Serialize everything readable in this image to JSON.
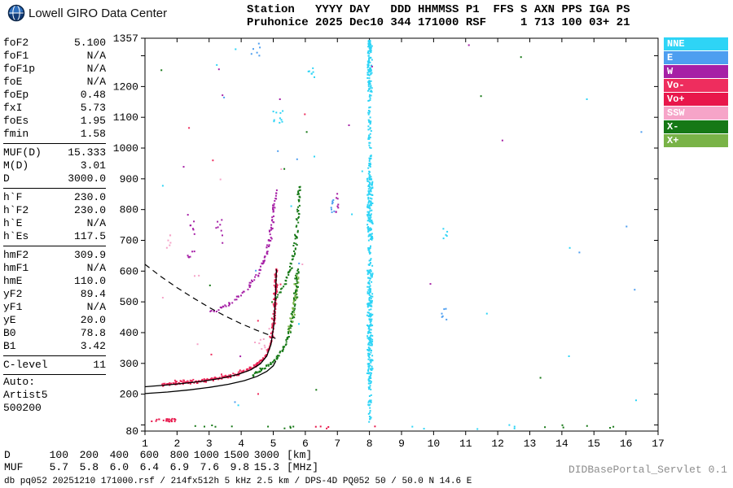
{
  "header": {
    "title": "Lowell GIRO Data Center",
    "station_line1": "Station   YYYY DAY   DDD HHMMSS P1  FFS S AXN PPS IGA PS",
    "station_line2": "Pruhonice 2025 Dec10 344 171000 RSF     1 713 100 03+ 21"
  },
  "params": {
    "sections": [
      {
        "rows": [
          [
            "foF2",
            "5.100"
          ],
          [
            "foF1",
            "N/A"
          ],
          [
            "foF1p",
            "N/A"
          ],
          [
            "foE",
            "N/A"
          ],
          [
            "foEp",
            "0.48"
          ],
          [
            "fxI",
            "5.73"
          ],
          [
            "foEs",
            "1.95"
          ],
          [
            "fmin",
            "1.58"
          ]
        ]
      },
      {
        "divider_top": true,
        "rows": [
          [
            "MUF(D)",
            "15.333"
          ],
          [
            "M(D)",
            "3.01"
          ],
          [
            "D",
            "3000.0"
          ]
        ]
      },
      {
        "divider_top": true,
        "rows": [
          [
            "h`F",
            "230.0"
          ],
          [
            "h`F2",
            "230.0"
          ],
          [
            "h`E",
            "N/A"
          ],
          [
            "h`Es",
            "117.5"
          ]
        ]
      },
      {
        "divider_top": true,
        "rows": [
          [
            "hmF2",
            "309.9"
          ],
          [
            "hmF1",
            "N/A"
          ],
          [
            "hmE",
            "110.0"
          ],
          [
            "yF2",
            "89.4"
          ],
          [
            "yF1",
            "N/A"
          ],
          [
            "yE",
            "20.0"
          ],
          [
            "B0",
            "78.8"
          ],
          [
            "B1",
            "3.42"
          ]
        ]
      },
      {
        "divider_top": true,
        "divider_bottom": true,
        "rows": [
          [
            "C-level",
            "11"
          ]
        ]
      },
      {
        "rows": [
          [
            "Auto:",
            ""
          ],
          [
            "Artist5",
            ""
          ],
          [
            "500200",
            ""
          ]
        ]
      }
    ]
  },
  "legend": {
    "items": [
      {
        "label": "NNE",
        "color": "#2ed4f6"
      },
      {
        "label": "E",
        "color": "#4d9ef0"
      },
      {
        "label": "W",
        "color": "#a620a6"
      },
      {
        "label": "Vo-",
        "color": "#ee2d5e"
      },
      {
        "label": "Vo+",
        "color": "#e8174b"
      },
      {
        "label": "SSW",
        "color": "#f6a4c8"
      },
      {
        "label": "X-",
        "color": "#167816"
      },
      {
        "label": "X+",
        "color": "#79b347"
      }
    ]
  },
  "chart_data": {
    "type": "scatter",
    "title": "Pruhonice 2025 Dec10 344 171000 RSF ionogram",
    "xlabel": "[MHz]",
    "ylabel": "[km]",
    "xlim": [
      1,
      17
    ],
    "ylim": [
      80,
      1357
    ],
    "grid": false,
    "legend_position": "right",
    "frame": {
      "x0": 43,
      "y0": 7,
      "x1": 673,
      "y1": 490
    },
    "x_ticks": [
      1,
      2,
      3,
      4,
      5,
      6,
      7,
      8,
      9,
      10,
      11,
      12,
      13,
      14,
      15,
      16,
      17
    ],
    "y_ticks": [
      {
        "v": 80,
        "label": "80"
      },
      {
        "v": 100
      },
      {
        "v": 200,
        "label": "200"
      },
      {
        "v": 300,
        "label": "300"
      },
      {
        "v": 400,
        "label": "400"
      },
      {
        "v": 500,
        "label": "500"
      },
      {
        "v": 600,
        "label": "600"
      },
      {
        "v": 700,
        "label": "700"
      },
      {
        "v": 800,
        "label": "800"
      },
      {
        "v": 900,
        "label": "900"
      },
      {
        "v": 1000,
        "label": "1000"
      },
      {
        "v": 1100,
        "label": "1100"
      },
      {
        "v": 1200,
        "label": "1200"
      },
      {
        "v": 1300
      },
      {
        "v": 1357,
        "label": "1357"
      }
    ],
    "traces": [
      {
        "name": "F-layer-O-trace",
        "color": "Vo+",
        "size": 2,
        "step": 2,
        "jitter": 1.3,
        "points": [
          [
            1.58,
            231
          ],
          [
            1.9,
            233
          ],
          [
            2.3,
            236
          ],
          [
            2.7,
            240
          ],
          [
            3.1,
            246
          ],
          [
            3.5,
            254
          ],
          [
            3.9,
            265
          ],
          [
            4.2,
            278
          ],
          [
            4.5,
            296
          ],
          [
            4.7,
            317
          ],
          [
            4.85,
            346
          ],
          [
            4.95,
            386
          ],
          [
            5.02,
            442
          ],
          [
            5.06,
            505
          ],
          [
            5.09,
            568
          ],
          [
            5.1,
            606
          ]
        ]
      },
      {
        "name": "F-layer-O-minus",
        "color": "Vo-",
        "size": 2,
        "step": 3,
        "jitter": 1.7,
        "points": [
          [
            1.58,
            236
          ],
          [
            2.1,
            239
          ],
          [
            2.6,
            243
          ],
          [
            3.1,
            250
          ],
          [
            3.6,
            259
          ],
          [
            4.0,
            271
          ],
          [
            4.3,
            285
          ],
          [
            4.55,
            302
          ]
        ]
      },
      {
        "name": "F-layer-O-asymptote",
        "color": "Vo-",
        "size": 2,
        "step": 3,
        "jitter": 1.8,
        "points": [
          [
            4.97,
            420
          ],
          [
            5.03,
            480
          ],
          [
            5.07,
            545
          ],
          [
            5.1,
            602
          ]
        ]
      },
      {
        "name": "F-layer-X-trace",
        "color": "X-",
        "size": 2,
        "step": 2,
        "jitter": 1.4,
        "points": [
          [
            4.35,
            262
          ],
          [
            4.65,
            279
          ],
          [
            4.95,
            300
          ],
          [
            5.15,
            324
          ],
          [
            5.32,
            352
          ],
          [
            5.45,
            384
          ],
          [
            5.55,
            422
          ],
          [
            5.63,
            466
          ],
          [
            5.7,
            522
          ],
          [
            5.75,
            572
          ],
          [
            5.77,
            604
          ]
        ]
      },
      {
        "name": "F-layer-X-plus",
        "color": "X+",
        "size": 2,
        "step": 4,
        "jitter": 2.2,
        "points": [
          [
            5.5,
            400
          ],
          [
            5.62,
            462
          ],
          [
            5.7,
            522
          ],
          [
            5.76,
            584
          ]
        ]
      },
      {
        "name": "second-hop-O-trace",
        "color": "W",
        "size": 2,
        "step": 3,
        "jitter": 1.6,
        "points": [
          [
            3.05,
            465
          ],
          [
            3.35,
            478
          ],
          [
            3.65,
            495
          ],
          [
            3.95,
            518
          ],
          [
            4.25,
            548
          ],
          [
            4.5,
            585
          ],
          [
            4.7,
            628
          ],
          [
            4.85,
            680
          ],
          [
            4.95,
            740
          ],
          [
            5.03,
            805
          ],
          [
            5.08,
            862
          ]
        ]
      },
      {
        "name": "second-hop-X-trace",
        "color": "X-",
        "size": 2,
        "step": 3,
        "jitter": 1.6,
        "points": [
          [
            5.0,
            502
          ],
          [
            5.2,
            528
          ],
          [
            5.38,
            560
          ],
          [
            5.52,
            600
          ],
          [
            5.63,
            650
          ],
          [
            5.71,
            710
          ],
          [
            5.77,
            775
          ],
          [
            5.81,
            840
          ],
          [
            5.83,
            878
          ]
        ]
      }
    ],
    "curves": {
      "solid": [
        [
          [
            1.0,
            224
          ],
          [
            1.6,
            229
          ],
          [
            2.2,
            235
          ],
          [
            2.8,
            242
          ],
          [
            3.4,
            252
          ],
          [
            3.9,
            264
          ],
          [
            4.3,
            279
          ],
          [
            4.6,
            299
          ],
          [
            4.8,
            324
          ],
          [
            4.93,
            361
          ],
          [
            5.02,
            427
          ],
          [
            5.06,
            502
          ],
          [
            5.09,
            572
          ],
          [
            5.1,
            606
          ]
        ],
        [
          [
            1.0,
            202
          ],
          [
            1.7,
            207
          ],
          [
            2.4,
            214
          ],
          [
            3.0,
            222
          ],
          [
            3.6,
            232
          ],
          [
            4.1,
            244
          ],
          [
            4.5,
            258
          ],
          [
            4.8,
            274
          ],
          [
            5.0,
            292
          ],
          [
            5.08,
            308
          ]
        ]
      ],
      "dashed": [
        [
          [
            1.0,
            622
          ],
          [
            1.5,
            582
          ],
          [
            2.0,
            546
          ],
          [
            2.5,
            513
          ],
          [
            3.0,
            482
          ],
          [
            3.5,
            454
          ],
          [
            4.0,
            429
          ],
          [
            4.5,
            407
          ],
          [
            4.85,
            393
          ],
          [
            5.07,
            381
          ]
        ]
      ]
    },
    "noise": [
      {
        "color": "NNE",
        "f": [
          7.96,
          8.06
        ],
        "h": [
          100,
          1350
        ],
        "n": 320
      },
      {
        "color": "NNE",
        "f": [
          7.93,
          8.1
        ],
        "h": [
          260,
          620
        ],
        "n": 110
      },
      {
        "color": "NNE",
        "f": [
          7.93,
          8.1
        ],
        "h": [
          700,
          905
        ],
        "n": 85
      },
      {
        "color": "NNE",
        "f": [
          7.94,
          8.08
        ],
        "h": [
          1180,
          1352
        ],
        "n": 60
      },
      {
        "color": "NNE",
        "f": [
          5.0,
          5.3
        ],
        "h": [
          1080,
          1125
        ],
        "n": 10
      },
      {
        "color": "NNE",
        "f": [
          6.05,
          6.3
        ],
        "h": [
          1230,
          1272
        ],
        "n": 7
      },
      {
        "color": "E",
        "f": [
          6.8,
          6.95
        ],
        "h": [
          775,
          835
        ],
        "n": 8
      },
      {
        "color": "W",
        "f": [
          6.92,
          7.08
        ],
        "h": [
          790,
          852
        ],
        "n": 8
      },
      {
        "color": "W",
        "f": [
          2.3,
          2.55
        ],
        "h": [
          640,
          800
        ],
        "n": 13
      },
      {
        "color": "SSW",
        "f": [
          1.6,
          1.85
        ],
        "h": [
          675,
          725
        ],
        "n": 6
      },
      {
        "color": "W",
        "f": [
          3.18,
          3.42
        ],
        "h": [
          690,
          772
        ],
        "n": 8
      },
      {
        "color": "E",
        "f": [
          10.25,
          10.55
        ],
        "h": [
          430,
          490
        ],
        "n": 6
      },
      {
        "color": "E",
        "f": [
          4.3,
          4.6
        ],
        "h": [
          1300,
          1348
        ],
        "n": 6
      },
      {
        "color": "NNE",
        "f": [
          10.3,
          10.48
        ],
        "h": [
          698,
          742
        ],
        "n": 5
      },
      {
        "color": "X-",
        "f": [
          2.3,
          5.9
        ],
        "h": [
          86,
          100
        ],
        "n": 10
      },
      {
        "color": "Vo+",
        "f": [
          6.1,
          8.9
        ],
        "h": [
          86,
          100
        ],
        "n": 5
      },
      {
        "color": "NNE",
        "f": [
          9.2,
          12.8
        ],
        "h": [
          86,
          100
        ],
        "n": 6
      },
      {
        "color": "X-",
        "f": [
          13.2,
          16.7
        ],
        "h": [
          86,
          100
        ],
        "n": 6
      },
      {
        "color": "Vo+",
        "f": [
          1.15,
          2.0
        ],
        "h": [
          111,
          120
        ],
        "n": 22
      },
      {
        "color": "SSW",
        "f": [
          4.55,
          5.08
        ],
        "h": [
          330,
          420
        ],
        "n": 8
      },
      {
        "color": "NNE",
        "f": [
          1.5,
          16.5
        ],
        "h": [
          120,
          1340
        ],
        "n": 14
      },
      {
        "color": "E",
        "f": [
          1.5,
          16.5
        ],
        "h": [
          120,
          1340
        ],
        "n": 10
      },
      {
        "color": "W",
        "f": [
          1.5,
          16.5
        ],
        "h": [
          130,
          1340
        ],
        "n": 10
      },
      {
        "color": "SSW",
        "f": [
          1.3,
          6.0
        ],
        "h": [
          150,
          950
        ],
        "n": 8
      },
      {
        "color": "X-",
        "f": [
          1.5,
          16.5
        ],
        "h": [
          120,
          1340
        ],
        "n": 8
      },
      {
        "color": "Vo-",
        "f": [
          1.3,
          6.5
        ],
        "h": [
          120,
          1340
        ],
        "n": 8
      }
    ]
  },
  "footer": {
    "d_row": {
      "label": "D",
      "values": [
        "100",
        "200",
        "400",
        "600",
        "800",
        "1000",
        "1500",
        "3000"
      ],
      "unit": "[km]"
    },
    "muf_row": {
      "label": "MUF",
      "values": [
        "5.7",
        "5.8",
        "6.0",
        "6.4",
        "6.9",
        "7.6",
        "9.8",
        "15.3"
      ],
      "unit": "[MHz]"
    },
    "info": "db pq052 20251210 171000.rsf / 214fx512h 5 kHz 2.5 km / DPS-4D PQ052 50 / 50.0 N 14.6 E",
    "servlet": "DIDBasePortal_Servlet 0.1"
  }
}
